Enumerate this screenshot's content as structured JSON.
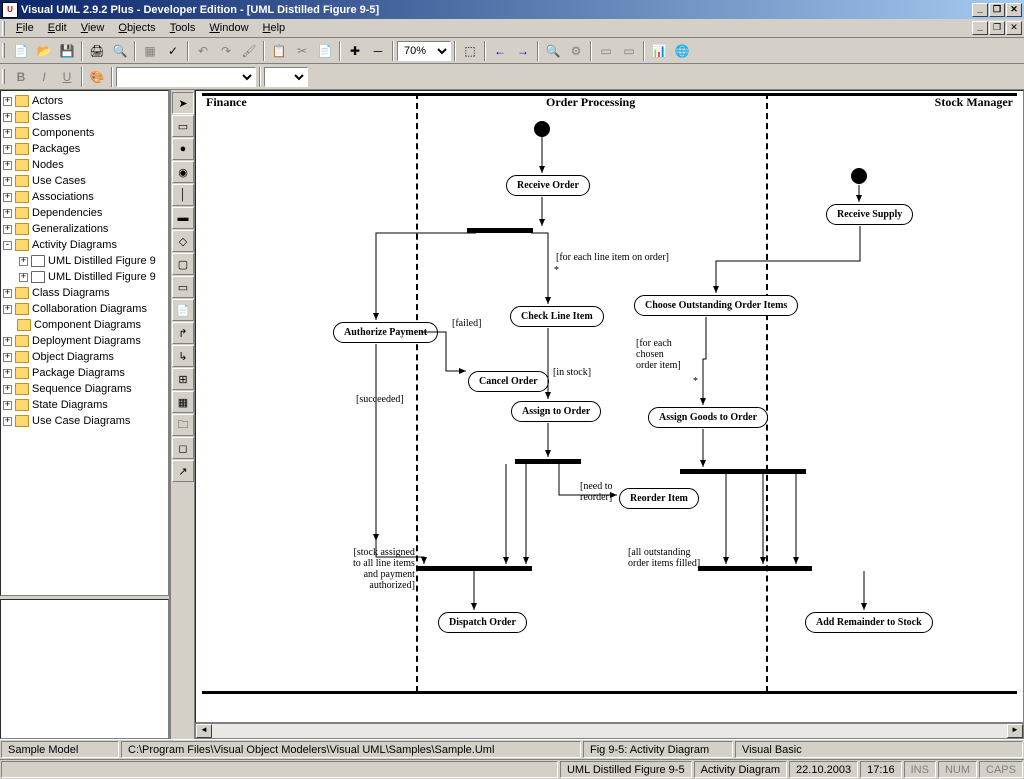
{
  "title": "Visual UML 2.9.2 Plus - Developer Edition - [UML Distilled Figure 9-5]",
  "menu": [
    "File",
    "Edit",
    "View",
    "Objects",
    "Tools",
    "Window",
    "Help"
  ],
  "zoom": "70%",
  "tree": [
    {
      "l": 0,
      "e": "+",
      "t": "Actors"
    },
    {
      "l": 0,
      "e": "+",
      "t": "Classes"
    },
    {
      "l": 0,
      "e": "+",
      "t": "Components"
    },
    {
      "l": 0,
      "e": "+",
      "t": "Packages"
    },
    {
      "l": 0,
      "e": "+",
      "t": "Nodes"
    },
    {
      "l": 0,
      "e": "+",
      "t": "Use Cases"
    },
    {
      "l": 0,
      "e": "+",
      "t": "Associations"
    },
    {
      "l": 0,
      "e": "+",
      "t": "Dependencies"
    },
    {
      "l": 0,
      "e": "+",
      "t": "Generalizations"
    },
    {
      "l": 0,
      "e": "-",
      "t": "Activity Diagrams"
    },
    {
      "l": 1,
      "e": "+",
      "t": "UML Distilled Figure 9",
      "d": 1
    },
    {
      "l": 1,
      "e": "+",
      "t": "UML Distilled Figure 9",
      "d": 1
    },
    {
      "l": 0,
      "e": "+",
      "t": "Class Diagrams"
    },
    {
      "l": 0,
      "e": "+",
      "t": "Collaboration Diagrams"
    },
    {
      "l": 0,
      "e": " ",
      "t": "Component Diagrams"
    },
    {
      "l": 0,
      "e": "+",
      "t": "Deployment Diagrams"
    },
    {
      "l": 0,
      "e": "+",
      "t": "Object Diagrams"
    },
    {
      "l": 0,
      "e": "+",
      "t": "Package Diagrams"
    },
    {
      "l": 0,
      "e": "+",
      "t": "Sequence Diagrams"
    },
    {
      "l": 0,
      "e": "+",
      "t": "State Diagrams"
    },
    {
      "l": 0,
      "e": "+",
      "t": "Use Case Diagrams"
    }
  ],
  "swimlanes": {
    "finance": "Finance",
    "order": "Order Processing",
    "stock": "Stock Manager"
  },
  "activities": {
    "receive_order": "Receive Order",
    "receive_supply": "Receive Supply",
    "authorize_payment": "Authorize Payment",
    "check_line": "Check Line Item",
    "choose_outstanding": "Choose Outstanding Order Items",
    "cancel_order": "Cancel Order",
    "assign_order": "Assign to Order",
    "assign_goods": "Assign Goods to Order",
    "reorder": "Reorder Item",
    "dispatch": "Dispatch Order",
    "add_remainder": "Add Remainder to Stock"
  },
  "guards": {
    "failed": "[failed]",
    "succeeded": "[succeeded]",
    "foreach_line": "[for each line item on order]",
    "in_stock": "[in stock]",
    "foreach_chosen": "[for each\nchosen\norder item]",
    "need_reorder": "[need to\nreorder]",
    "stock_assigned": "[stock assigned\nto all line items\nand payment\nauthorized]",
    "all_filled": "[all outstanding\norder items filled]"
  },
  "status1": {
    "model": "Sample Model",
    "path": "C:\\Program Files\\Visual Object Modelers\\Visual UML\\Samples\\Sample.Uml",
    "fig": "Fig 9-5: Activity Diagram",
    "lang": "Visual Basic"
  },
  "status2": {
    "diagram": "UML Distilled Figure 9-5",
    "type": "Activity Diagram",
    "date": "22.10.2003",
    "time": "17:16",
    "ins": "INS",
    "num": "NUM",
    "caps": "CAPS"
  },
  "colors": {
    "title_grad_start": "#0a246a",
    "title_grad_end": "#a6caf0",
    "bg": "#d4d0c8",
    "folder": "#ffd970"
  }
}
